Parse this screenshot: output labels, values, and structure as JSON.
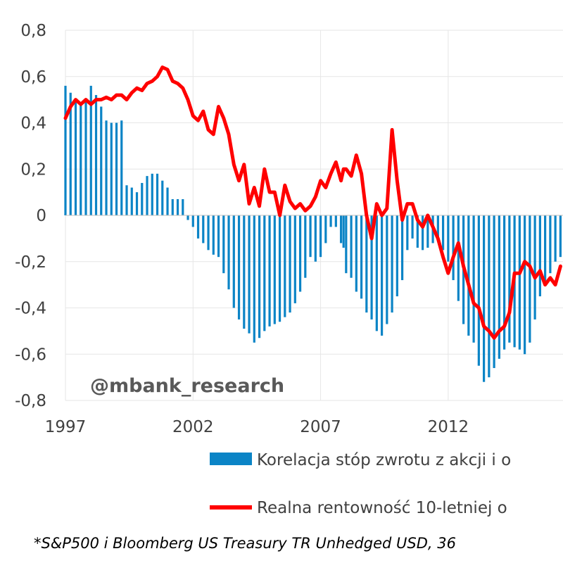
{
  "chart_data": {
    "type": "bar+line",
    "ylim": [
      -0.8,
      0.8
    ],
    "y_ticks": [
      "0,8",
      "0,6",
      "0,4",
      "0,2",
      "0",
      "-0,2",
      "-0,4",
      "-0,6",
      "-0,8"
    ],
    "y_tick_values": [
      0.8,
      0.6,
      0.4,
      0.2,
      0,
      -0.2,
      -0.4,
      -0.6,
      -0.8
    ],
    "x_ticks": [
      "1997",
      "2002",
      "2007",
      "2012"
    ],
    "x_tick_values": [
      1997,
      2002,
      2007,
      2012
    ],
    "xlim": [
      1997,
      2016.5
    ],
    "grid": true,
    "legend_placement": "bottom",
    "series": [
      {
        "name": "Korelacja stóp zwrotu z akcji i o",
        "type": "bar",
        "color": "#0b84c6",
        "points": [
          [
            1997.0,
            0.56
          ],
          [
            1997.2,
            0.53
          ],
          [
            1997.4,
            0.5
          ],
          [
            1997.6,
            0.48
          ],
          [
            1997.8,
            0.5
          ],
          [
            1998.0,
            0.56
          ],
          [
            1998.2,
            0.52
          ],
          [
            1998.4,
            0.47
          ],
          [
            1998.6,
            0.41
          ],
          [
            1998.8,
            0.4
          ],
          [
            1999.0,
            0.4
          ],
          [
            1999.2,
            0.41
          ],
          [
            1999.4,
            0.13
          ],
          [
            1999.6,
            0.12
          ],
          [
            1999.8,
            0.1
          ],
          [
            2000.0,
            0.14
          ],
          [
            2000.2,
            0.17
          ],
          [
            2000.4,
            0.18
          ],
          [
            2000.6,
            0.18
          ],
          [
            2000.8,
            0.15
          ],
          [
            2001.0,
            0.12
          ],
          [
            2001.2,
            0.07
          ],
          [
            2001.4,
            0.07
          ],
          [
            2001.6,
            0.07
          ],
          [
            2001.8,
            -0.02
          ],
          [
            2002.0,
            -0.05
          ],
          [
            2002.2,
            -0.1
          ],
          [
            2002.4,
            -0.12
          ],
          [
            2002.6,
            -0.15
          ],
          [
            2002.8,
            -0.17
          ],
          [
            2003.0,
            -0.18
          ],
          [
            2003.2,
            -0.25
          ],
          [
            2003.4,
            -0.32
          ],
          [
            2003.6,
            -0.4
          ],
          [
            2003.8,
            -0.45
          ],
          [
            2004.0,
            -0.49
          ],
          [
            2004.2,
            -0.51
          ],
          [
            2004.4,
            -0.55
          ],
          [
            2004.6,
            -0.53
          ],
          [
            2004.8,
            -0.5
          ],
          [
            2005.0,
            -0.48
          ],
          [
            2005.2,
            -0.47
          ],
          [
            2005.4,
            -0.46
          ],
          [
            2005.6,
            -0.44
          ],
          [
            2005.8,
            -0.42
          ],
          [
            2006.0,
            -0.38
          ],
          [
            2006.2,
            -0.33
          ],
          [
            2006.4,
            -0.27
          ],
          [
            2006.6,
            -0.18
          ],
          [
            2006.8,
            -0.2
          ],
          [
            2007.0,
            -0.18
          ],
          [
            2007.2,
            -0.12
          ],
          [
            2007.4,
            -0.05
          ],
          [
            2007.6,
            -0.05
          ],
          [
            2007.8,
            -0.12
          ],
          [
            2007.9,
            -0.14
          ],
          [
            2008.0,
            -0.25
          ],
          [
            2008.2,
            -0.27
          ],
          [
            2008.4,
            -0.33
          ],
          [
            2008.6,
            -0.36
          ],
          [
            2008.8,
            -0.42
          ],
          [
            2009.0,
            -0.45
          ],
          [
            2009.2,
            -0.5
          ],
          [
            2009.4,
            -0.52
          ],
          [
            2009.6,
            -0.47
          ],
          [
            2009.8,
            -0.42
          ],
          [
            2010.0,
            -0.35
          ],
          [
            2010.2,
            -0.28
          ],
          [
            2010.4,
            -0.15
          ],
          [
            2010.6,
            -0.1
          ],
          [
            2010.8,
            -0.14
          ],
          [
            2011.0,
            -0.15
          ],
          [
            2011.2,
            -0.14
          ],
          [
            2011.4,
            -0.12
          ],
          [
            2011.6,
            -0.1
          ],
          [
            2011.8,
            -0.15
          ],
          [
            2012.0,
            -0.2
          ],
          [
            2012.2,
            -0.28
          ],
          [
            2012.4,
            -0.37
          ],
          [
            2012.6,
            -0.47
          ],
          [
            2012.8,
            -0.52
          ],
          [
            2013.0,
            -0.55
          ],
          [
            2013.2,
            -0.65
          ],
          [
            2013.4,
            -0.72
          ],
          [
            2013.6,
            -0.7
          ],
          [
            2013.8,
            -0.66
          ],
          [
            2014.0,
            -0.62
          ],
          [
            2014.2,
            -0.58
          ],
          [
            2014.4,
            -0.55
          ],
          [
            2014.6,
            -0.57
          ],
          [
            2014.8,
            -0.58
          ],
          [
            2015.0,
            -0.6
          ],
          [
            2015.2,
            -0.55
          ],
          [
            2015.4,
            -0.45
          ],
          [
            2015.6,
            -0.35
          ],
          [
            2015.8,
            -0.3
          ],
          [
            2016.0,
            -0.25
          ],
          [
            2016.2,
            -0.2
          ],
          [
            2016.4,
            -0.18
          ]
        ]
      },
      {
        "name": "Realna rentowność 10-letniej o",
        "type": "line",
        "color": "#ff0000",
        "points": [
          [
            1997.0,
            0.42
          ],
          [
            1997.2,
            0.47
          ],
          [
            1997.4,
            0.5
          ],
          [
            1997.6,
            0.48
          ],
          [
            1997.8,
            0.5
          ],
          [
            1998.0,
            0.48
          ],
          [
            1998.2,
            0.5
          ],
          [
            1998.4,
            0.5
          ],
          [
            1998.6,
            0.51
          ],
          [
            1998.8,
            0.5
          ],
          [
            1999.0,
            0.52
          ],
          [
            1999.2,
            0.52
          ],
          [
            1999.4,
            0.5
          ],
          [
            1999.6,
            0.53
          ],
          [
            1999.8,
            0.55
          ],
          [
            2000.0,
            0.54
          ],
          [
            2000.2,
            0.57
          ],
          [
            2000.4,
            0.58
          ],
          [
            2000.6,
            0.6
          ],
          [
            2000.8,
            0.64
          ],
          [
            2001.0,
            0.63
          ],
          [
            2001.2,
            0.58
          ],
          [
            2001.4,
            0.57
          ],
          [
            2001.6,
            0.55
          ],
          [
            2001.8,
            0.5
          ],
          [
            2002.0,
            0.43
          ],
          [
            2002.2,
            0.41
          ],
          [
            2002.4,
            0.45
          ],
          [
            2002.6,
            0.37
          ],
          [
            2002.8,
            0.35
          ],
          [
            2003.0,
            0.47
          ],
          [
            2003.2,
            0.42
          ],
          [
            2003.4,
            0.35
          ],
          [
            2003.6,
            0.22
          ],
          [
            2003.8,
            0.15
          ],
          [
            2004.0,
            0.22
          ],
          [
            2004.2,
            0.05
          ],
          [
            2004.4,
            0.12
          ],
          [
            2004.6,
            0.04
          ],
          [
            2004.8,
            0.2
          ],
          [
            2005.0,
            0.1
          ],
          [
            2005.2,
            0.1
          ],
          [
            2005.4,
            0.0
          ],
          [
            2005.6,
            0.13
          ],
          [
            2005.8,
            0.06
          ],
          [
            2006.0,
            0.03
          ],
          [
            2006.2,
            0.05
          ],
          [
            2006.4,
            0.02
          ],
          [
            2006.6,
            0.04
          ],
          [
            2006.8,
            0.08
          ],
          [
            2007.0,
            0.15
          ],
          [
            2007.2,
            0.12
          ],
          [
            2007.4,
            0.18
          ],
          [
            2007.6,
            0.23
          ],
          [
            2007.8,
            0.15
          ],
          [
            2007.9,
            0.2
          ],
          [
            2008.0,
            0.2
          ],
          [
            2008.2,
            0.17
          ],
          [
            2008.4,
            0.26
          ],
          [
            2008.6,
            0.18
          ],
          [
            2008.8,
            0.0
          ],
          [
            2009.0,
            -0.1
          ],
          [
            2009.2,
            0.05
          ],
          [
            2009.4,
            0.0
          ],
          [
            2009.6,
            0.03
          ],
          [
            2009.8,
            0.37
          ],
          [
            2010.0,
            0.15
          ],
          [
            2010.2,
            -0.02
          ],
          [
            2010.4,
            0.05
          ],
          [
            2010.6,
            0.05
          ],
          [
            2010.8,
            -0.02
          ],
          [
            2011.0,
            -0.05
          ],
          [
            2011.2,
            0.0
          ],
          [
            2011.4,
            -0.05
          ],
          [
            2011.6,
            -0.1
          ],
          [
            2011.8,
            -0.18
          ],
          [
            2012.0,
            -0.25
          ],
          [
            2012.2,
            -0.18
          ],
          [
            2012.4,
            -0.12
          ],
          [
            2012.6,
            -0.22
          ],
          [
            2012.8,
            -0.3
          ],
          [
            2013.0,
            -0.38
          ],
          [
            2013.2,
            -0.4
          ],
          [
            2013.4,
            -0.48
          ],
          [
            2013.6,
            -0.5
          ],
          [
            2013.8,
            -0.53
          ],
          [
            2014.0,
            -0.5
          ],
          [
            2014.2,
            -0.48
          ],
          [
            2014.4,
            -0.42
          ],
          [
            2014.6,
            -0.25
          ],
          [
            2014.8,
            -0.25
          ],
          [
            2015.0,
            -0.2
          ],
          [
            2015.2,
            -0.22
          ],
          [
            2015.4,
            -0.27
          ],
          [
            2015.6,
            -0.24
          ],
          [
            2015.8,
            -0.3
          ],
          [
            2016.0,
            -0.27
          ],
          [
            2016.2,
            -0.3
          ],
          [
            2016.4,
            -0.22
          ]
        ]
      }
    ],
    "annotations": [
      "@mbank_research"
    ],
    "footnote": "*S&P500 i Bloomberg US Treasury TR Unhedged USD, 36"
  }
}
